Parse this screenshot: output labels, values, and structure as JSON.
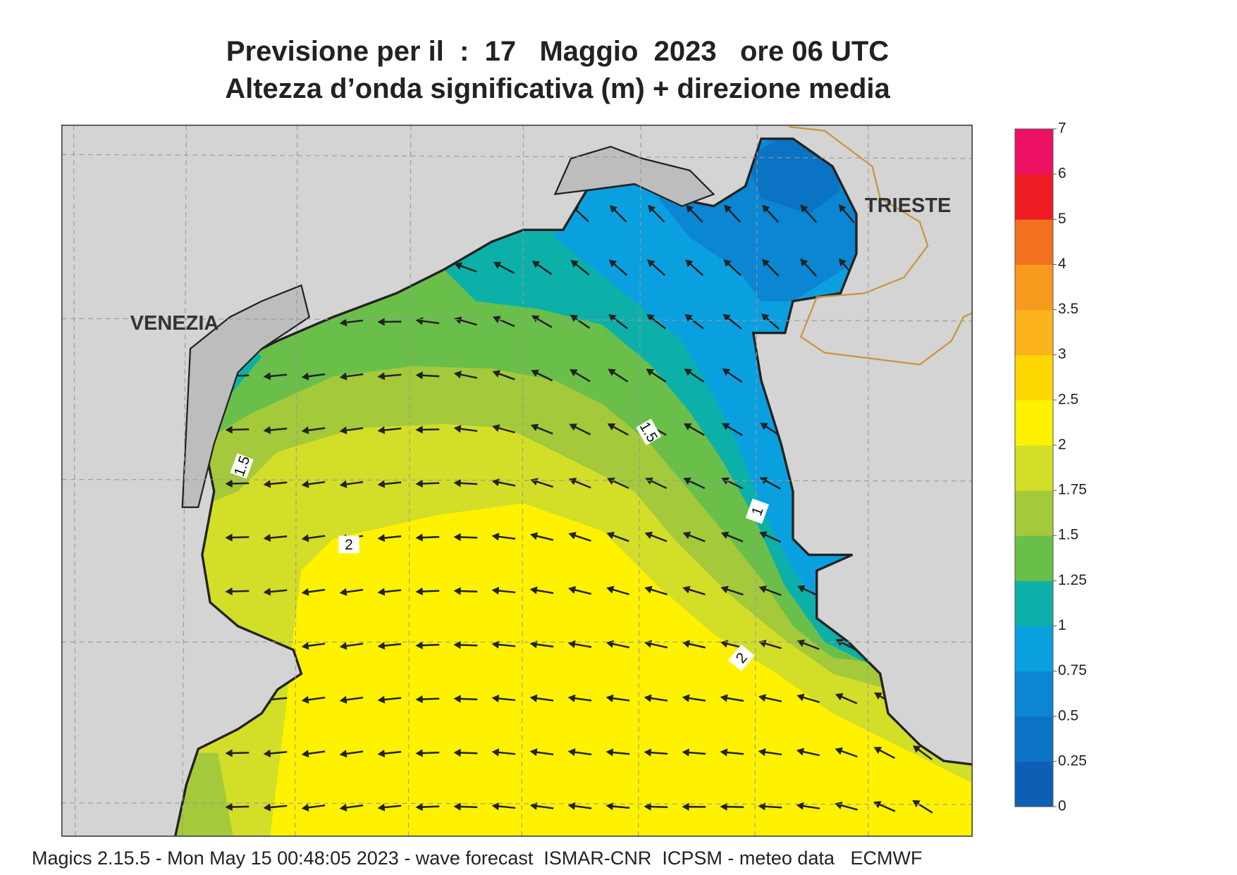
{
  "header": {
    "title_line1": "Previsione per il  :  17   Maggio  2023   ore 06 UTC",
    "title_line2": "Altezza d’onda significativa (m) + direzione media"
  },
  "map": {
    "places": [
      "VENEZIA",
      "TRIESTE"
    ],
    "contour_labels": [
      "1.5",
      "1.5",
      "2",
      "1",
      "2"
    ]
  },
  "colorbar": {
    "ticks": [
      0,
      0.25,
      0.5,
      0.75,
      1,
      1.25,
      1.5,
      1.75,
      2,
      2.5,
      3,
      3.5,
      4,
      5,
      6,
      7
    ],
    "colors": [
      "#0d5fb5",
      "#0b73c4",
      "#0a86d2",
      "#0aa0e0",
      "#0cb0a8",
      "#6abf4b",
      "#a4c93a",
      "#d3de28",
      "#fff200",
      "#ffd700",
      "#fbb21b",
      "#f79a1e",
      "#f37021",
      "#ed1c24",
      "#ec1163"
    ]
  },
  "footer": "Magics 2.15.5 - Mon May 15 00:48:05 2023 - wave forecast  ISMAR-CNR  ICPSM - meteo data   ECMWF"
}
